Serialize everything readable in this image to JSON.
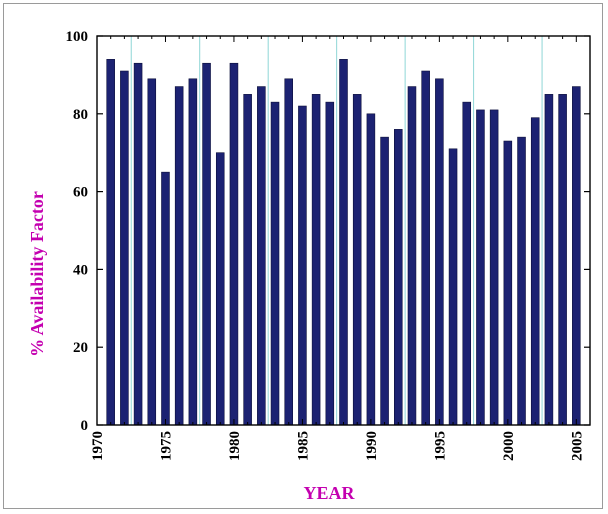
{
  "chart_data": {
    "type": "bar",
    "title": "",
    "xlabel": "YEAR",
    "ylabel": "% Availability Factor",
    "ylim": [
      0,
      100
    ],
    "yticks": [
      0,
      20,
      40,
      60,
      80,
      100
    ],
    "xticks": [
      1970,
      1975,
      1980,
      1985,
      1990,
      1995,
      2000,
      2005
    ],
    "grid": "vertical",
    "colors": {
      "bar": "#1c2272",
      "gridline": "#8fd6d6",
      "axis": "#000000",
      "title": "#c400b0"
    },
    "x": [
      1971,
      1972,
      1973,
      1974,
      1975,
      1976,
      1977,
      1978,
      1979,
      1980,
      1981,
      1982,
      1983,
      1984,
      1985,
      1986,
      1987,
      1988,
      1989,
      1990,
      1991,
      1992,
      1993,
      1994,
      1995,
      1996,
      1997,
      1998,
      1999,
      2000,
      2001,
      2002,
      2003,
      2004,
      2005
    ],
    "values": [
      94,
      91,
      93,
      89,
      65,
      87,
      89,
      93,
      70,
      93,
      85,
      87,
      83,
      89,
      82,
      85,
      83,
      94,
      85,
      80,
      74,
      76,
      87,
      91,
      89,
      71,
      83,
      81,
      81,
      73,
      74,
      79,
      85,
      85,
      87
    ]
  }
}
